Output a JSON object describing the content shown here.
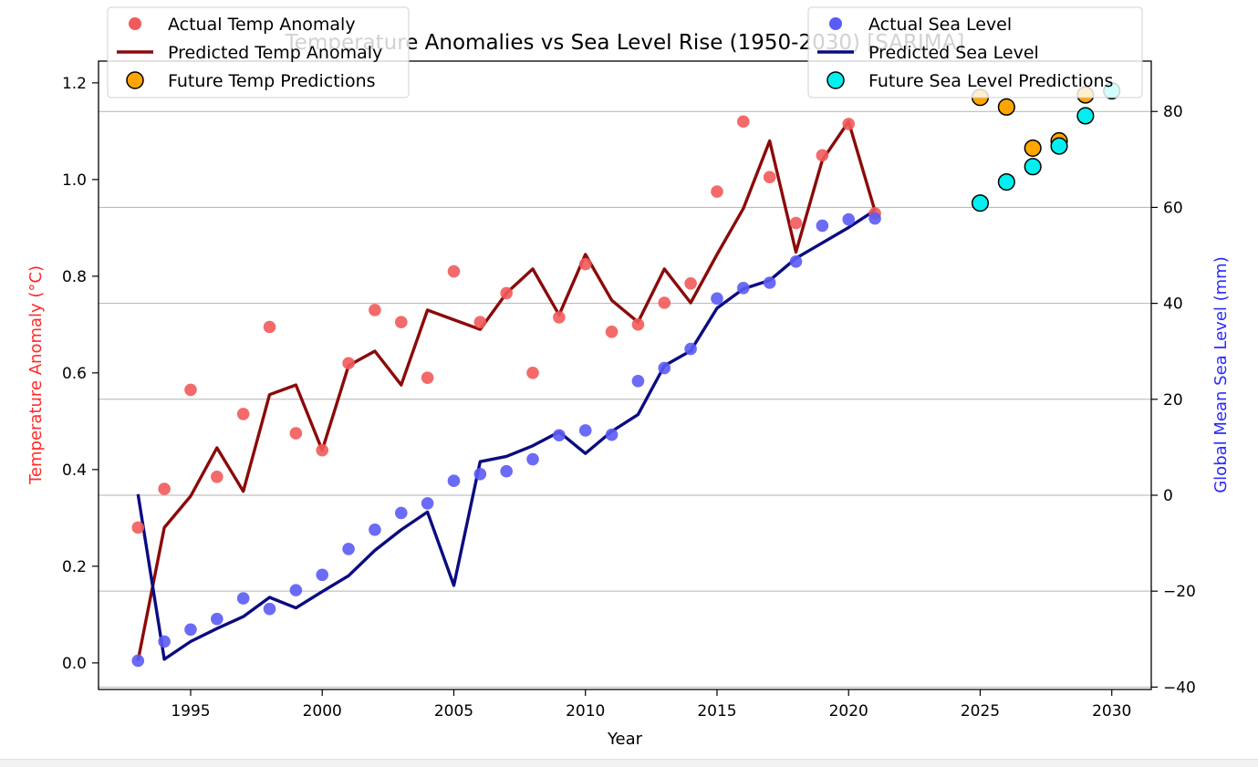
{
  "chart_data": {
    "type": "line",
    "title": "Temperature Anomalies vs Sea Level Rise (1950-2030) [SARIMA]",
    "xlabel": "Year",
    "ylabel_left": "Temperature Anomaly (°C)",
    "ylabel_right": "Global Mean Sea Level (mm)",
    "xlim": [
      1991.5,
      2031.5
    ],
    "ylim_left": [
      -0.055,
      1.245
    ],
    "ylim_right": [
      -40.5,
      90.5
    ],
    "x_ticks": [
      1995,
      2000,
      2005,
      2010,
      2015,
      2020,
      2025,
      2030
    ],
    "y_left_ticks": [
      0.0,
      0.2,
      0.4,
      0.6,
      0.8,
      1.0,
      1.2
    ],
    "y_left_tick_labels": [
      "0.0",
      "0.2",
      "0.4",
      "0.6",
      "0.8",
      "1.0",
      "1.2"
    ],
    "y_right_ticks": [
      -40,
      -20,
      0,
      20,
      40,
      60,
      80
    ],
    "y_right_tick_labels": [
      "−40",
      "−20",
      "0",
      "20",
      "40",
      "60",
      "80"
    ],
    "grid": "horizontal, right axis",
    "legend_left": "upper-left",
    "legend_right": "upper-right",
    "colors": {
      "actual_temp": "#f25a5a",
      "predicted_temp": "#8b0a0a",
      "future_temp": "#ffa500",
      "actual_sea": "#5b5bf5",
      "predicted_sea": "#0b0b80",
      "future_sea": "#00f0f0",
      "left_label": "#ff2a2a",
      "right_label": "#2a2aff"
    },
    "series": [
      {
        "name": "Actual Temp Anomaly",
        "axis": "left",
        "kind": "scatter",
        "x": [
          1993,
          1994,
          1995,
          1996,
          1997,
          1998,
          1999,
          2000,
          2001,
          2002,
          2003,
          2004,
          2005,
          2006,
          2007,
          2008,
          2009,
          2010,
          2011,
          2012,
          2013,
          2014,
          2015,
          2016,
          2017,
          2018,
          2019,
          2020,
          2021
        ],
        "values": [
          0.28,
          0.36,
          0.565,
          0.385,
          0.515,
          0.695,
          0.475,
          0.44,
          0.62,
          0.73,
          0.705,
          0.59,
          0.81,
          0.705,
          0.765,
          0.6,
          0.715,
          0.825,
          0.685,
          0.7,
          0.745,
          0.785,
          0.975,
          1.12,
          1.005,
          0.91,
          1.05,
          1.115,
          0.93
        ]
      },
      {
        "name": "Predicted Temp Anomaly",
        "axis": "left",
        "kind": "line",
        "x": [
          1993,
          1994,
          1995,
          1996,
          1997,
          1998,
          1999,
          2000,
          2001,
          2002,
          2003,
          2004,
          2005,
          2006,
          2007,
          2008,
          2009,
          2010,
          2011,
          2012,
          2013,
          2014,
          2015,
          2016,
          2017,
          2018,
          2019,
          2020,
          2021
        ],
        "values": [
          0.005,
          0.28,
          0.345,
          0.445,
          0.355,
          0.555,
          0.575,
          0.44,
          0.615,
          0.645,
          0.575,
          0.73,
          0.71,
          0.69,
          0.765,
          0.815,
          0.72,
          0.845,
          0.75,
          0.705,
          0.815,
          0.745,
          0.845,
          0.94,
          1.08,
          0.85,
          1.04,
          1.12,
          0.935
        ]
      },
      {
        "name": "Future Temp Predictions",
        "axis": "left",
        "kind": "future",
        "x": [
          2025,
          2026,
          2027,
          2028,
          2029
        ],
        "values": [
          1.17,
          1.15,
          1.065,
          1.08,
          1.175
        ]
      },
      {
        "name": "Actual Sea Level",
        "axis": "right",
        "kind": "scatter",
        "x": [
          1993,
          1994,
          1995,
          1996,
          1997,
          1998,
          1999,
          2000,
          2001,
          2002,
          2003,
          2004,
          2005,
          2006,
          2007,
          2008,
          2009,
          2010,
          2011,
          2012,
          2013,
          2014,
          2015,
          2016,
          2017,
          2018,
          2019,
          2020,
          2021
        ],
        "values": [
          -34.5,
          -30.5,
          -28,
          -25.8,
          -21.5,
          -23.7,
          -19.8,
          -16.6,
          -11.2,
          -7.2,
          -3.7,
          -1.7,
          3,
          4.4,
          5,
          7.5,
          12.5,
          13.5,
          12.6,
          23.8,
          26.5,
          30.5,
          41,
          43.2,
          44.3,
          48.7,
          56.2,
          57.5,
          57.7
        ]
      },
      {
        "name": "Predicted Sea Level",
        "axis": "right",
        "kind": "line",
        "x": [
          1993,
          1994,
          1995,
          1996,
          1997,
          1998,
          1999,
          2000,
          2001,
          2002,
          2003,
          2004,
          2005,
          2006,
          2007,
          2008,
          2009,
          2010,
          2011,
          2012,
          2013,
          2014,
          2015,
          2016,
          2017,
          2018,
          2019,
          2020,
          2021
        ],
        "values": [
          0.2,
          -34.2,
          -30.5,
          -27.8,
          -25.3,
          -21.3,
          -23.5,
          -20.1,
          -16.8,
          -11.5,
          -7.2,
          -3.5,
          -18.8,
          7,
          8.1,
          10.3,
          13.2,
          8.7,
          13.3,
          16.8,
          27,
          30.1,
          39,
          43,
          44.8,
          49.4,
          52.6,
          55.8,
          59.4
        ]
      },
      {
        "name": "Future Sea Level Predictions",
        "axis": "right",
        "kind": "future",
        "x": [
          2025,
          2026,
          2027,
          2028,
          2029,
          2030
        ],
        "values": [
          60.9,
          65.3,
          68.5,
          72.8,
          79.1,
          84.3
        ]
      }
    ]
  }
}
